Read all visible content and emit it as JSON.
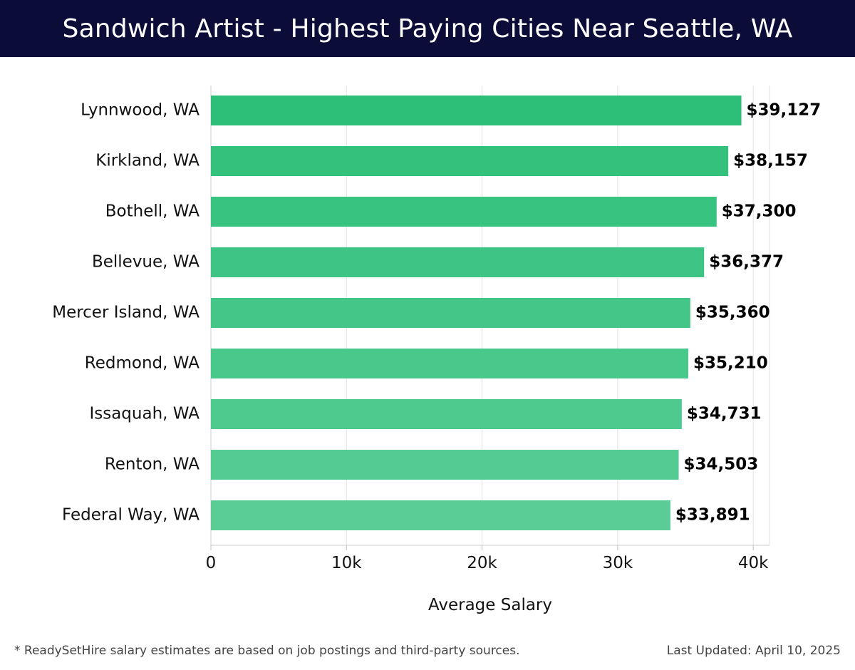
{
  "header": {
    "title": "Sandwich Artist - Highest Paying Cities Near Seattle, WA"
  },
  "chart_data": {
    "type": "bar",
    "orientation": "horizontal",
    "title": "Sandwich Artist - Highest Paying Cities Near Seattle, WA",
    "categories": [
      "Lynnwood, WA",
      "Kirkland, WA",
      "Bothell, WA",
      "Bellevue, WA",
      "Mercer Island, WA",
      "Redmond, WA",
      "Issaquah, WA",
      "Renton, WA",
      "Federal Way, WA"
    ],
    "values": [
      39127,
      38157,
      37300,
      36377,
      35360,
      35210,
      34731,
      34503,
      33891
    ],
    "value_labels": [
      "$39,127",
      "$38,157",
      "$37,300",
      "$36,377",
      "$35,360",
      "$35,210",
      "$34,731",
      "$34,503",
      "$33,891"
    ],
    "xlabel": "Average Salary",
    "ylabel": "",
    "xlim": [
      0,
      41200
    ],
    "xticks": [
      0,
      10000,
      20000,
      30000,
      40000
    ],
    "xtick_labels": [
      "0",
      "10k",
      "20k",
      "30k",
      "40k"
    ],
    "grid": "vertical",
    "legend": "none",
    "bar_color_top": "#2dbf78",
    "bar_color_bottom": "#5acd97"
  },
  "footer": {
    "note": "* ReadySetHire salary estimates are based on job postings and third-party sources.",
    "updated": "Last Updated: April 10, 2025"
  }
}
